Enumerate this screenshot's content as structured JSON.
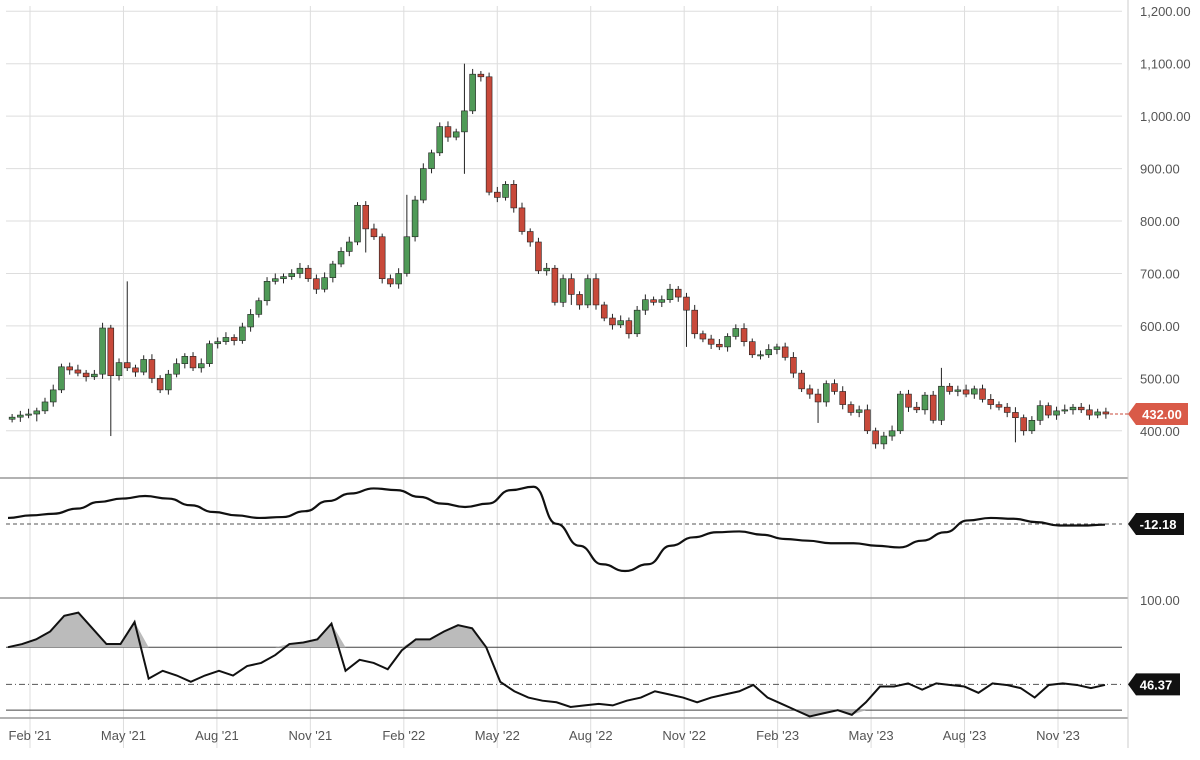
{
  "chart_data": [
    {
      "type": "candlestick",
      "panel": "price",
      "x_tick_labels": [
        "Feb '21",
        "May '21",
        "Aug '21",
        "Nov '21",
        "Feb '22",
        "May '22",
        "Aug '22",
        "Nov '22",
        "Feb '23",
        "May '23",
        "Aug '23",
        "Nov '23"
      ],
      "y_tick_labels": [
        "1,200.00",
        "1,100.00",
        "1,000.00",
        "900.00",
        "800.00",
        "700.00",
        "600.00",
        "500.00",
        "400.00"
      ],
      "y_ticks": [
        1200,
        1100,
        1000,
        900,
        800,
        700,
        600,
        500,
        400
      ],
      "ylim": [
        310,
        1210
      ],
      "last_value_label": "432.00",
      "up_color": "#4f9a57",
      "down_color": "#c8493a",
      "grid": true,
      "close": [
        426,
        430,
        432,
        438,
        455,
        478,
        522,
        516,
        510,
        503,
        508,
        596,
        505,
        530,
        520,
        512,
        536,
        500,
        478,
        508,
        528,
        542,
        520,
        528,
        566,
        570,
        578,
        572,
        598,
        622,
        648,
        685,
        690,
        694,
        700,
        710,
        690,
        670,
        692,
        718,
        742,
        760,
        830,
        785,
        770,
        690,
        680,
        700,
        770,
        840,
        900,
        930,
        980,
        960,
        970,
        1010,
        1080,
        1075,
        855,
        845,
        870,
        825,
        780,
        760,
        705,
        710,
        645,
        690,
        660,
        640,
        690,
        640,
        615,
        602,
        610,
        585,
        630,
        650,
        645,
        650,
        670,
        655,
        630,
        585,
        575,
        565,
        560,
        580,
        595,
        570,
        545,
        545,
        555,
        560,
        540,
        510,
        480,
        470,
        455,
        490,
        475,
        450,
        435,
        440,
        400,
        375,
        390,
        400,
        470,
        445,
        440,
        468,
        420,
        485,
        475,
        478,
        470,
        480,
        460,
        450,
        445,
        435,
        425,
        400,
        420,
        448,
        430,
        438,
        440,
        445,
        440,
        430,
        436,
        432
      ],
      "lows": [
        [
          3,
          418
        ],
        [
          12,
          390
        ],
        [
          43,
          740
        ],
        [
          55,
          890
        ],
        [
          68,
          640
        ],
        [
          82,
          560
        ],
        [
          98,
          415
        ],
        [
          106,
          365
        ],
        [
          122,
          378
        ]
      ],
      "highs": [
        [
          14,
          685
        ],
        [
          48,
          850
        ],
        [
          55,
          1100
        ],
        [
          113,
          520
        ]
      ]
    },
    {
      "type": "line",
      "panel": "oscillator",
      "ylim": [
        -100,
        40
      ],
      "reference_value": -12.18,
      "last_value_label": "-12.18",
      "color": "#111111",
      "values": [
        -5,
        -2,
        0,
        6,
        14,
        18,
        21,
        18,
        10,
        2,
        -2,
        -5,
        -4,
        3,
        15,
        24,
        30,
        28,
        20,
        12,
        8,
        12,
        28,
        32,
        -12,
        -38,
        -60,
        -68,
        -60,
        -38,
        -28,
        -22,
        -21,
        -25,
        -30,
        -32,
        -35,
        -35,
        -38,
        -40,
        -32,
        -22,
        -8,
        -5,
        -6,
        -10,
        -14,
        -14,
        -13
      ]
    },
    {
      "type": "line",
      "panel": "rsi",
      "ylim": [
        25,
        100
      ],
      "y_tick_labels": [
        "100.00"
      ],
      "upper_band": 70,
      "lower_band": 30,
      "reference_value": 46.37,
      "last_value_label": "46.37",
      "color": "#111111",
      "fill_color": "#bbbbbb",
      "values": [
        70,
        72,
        75,
        80,
        90,
        92,
        82,
        72,
        72,
        86,
        50,
        55,
        52,
        48,
        52,
        55,
        52,
        58,
        60,
        65,
        72,
        73,
        75,
        85,
        55,
        62,
        60,
        56,
        68,
        75,
        75,
        80,
        84,
        82,
        70,
        48,
        42,
        38,
        36,
        35,
        32,
        33,
        34,
        33,
        36,
        38,
        42,
        40,
        38,
        35,
        38,
        40,
        42,
        46,
        38,
        34,
        30,
        26,
        28,
        30,
        27,
        35,
        45,
        45,
        47,
        43,
        47,
        46,
        45,
        41,
        47,
        46,
        44,
        38,
        46,
        47,
        46,
        44,
        46
      ]
    }
  ]
}
